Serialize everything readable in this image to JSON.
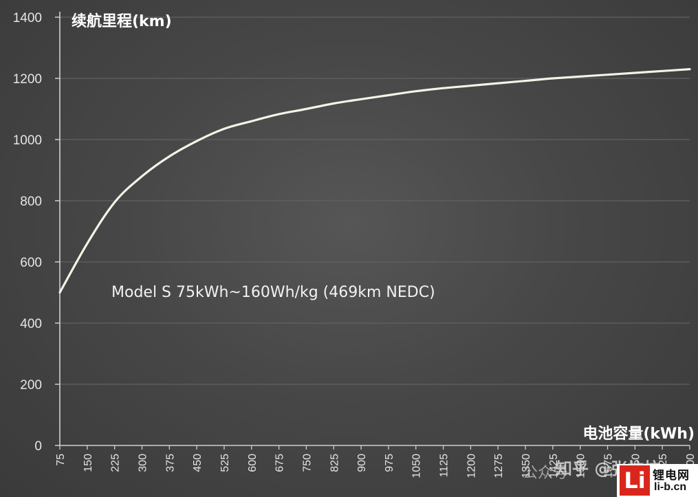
{
  "chart_data": {
    "type": "line",
    "ylabel": "续航里程(km)",
    "xlabel": "电池容量(kWh)",
    "ylim": [
      0,
      1400
    ],
    "yticks": [
      "0",
      "200",
      "400",
      "600",
      "800",
      "1000",
      "1200",
      "1400"
    ],
    "xlim": [
      75,
      1800
    ],
    "xticks": [
      "75",
      "150",
      "225",
      "300",
      "375",
      "450",
      "525",
      "600",
      "675",
      "750",
      "825",
      "900",
      "975",
      "1050",
      "1125",
      "1200",
      "1275",
      "1350",
      "1425",
      "1500",
      "1575",
      "1650",
      "1725",
      "1800"
    ],
    "grid": true,
    "annotation": "Model S 75kWh~160Wh/kg (469km NEDC)",
    "series": [
      {
        "color": "#f5f3e6",
        "x": [
          75,
          150,
          225,
          300,
          375,
          450,
          525,
          600,
          675,
          750,
          825,
          900,
          975,
          1050,
          1125,
          1200,
          1275,
          1350,
          1425,
          1500,
          1575,
          1650,
          1725,
          1800
        ],
        "y": [
          500,
          660,
          795,
          880,
          945,
          995,
          1035,
          1060,
          1083,
          1100,
          1118,
          1132,
          1145,
          1158,
          1168,
          1176,
          1184,
          1192,
          1200,
          1206,
          1212,
          1218,
          1224,
          1230
        ]
      }
    ]
  },
  "watermark": {
    "wechat": "公众号",
    "zhihu": "知乎 @张抗抗"
  },
  "logo": {
    "mark": "Li",
    "name": "锂电网",
    "url": "li-b.cn"
  }
}
